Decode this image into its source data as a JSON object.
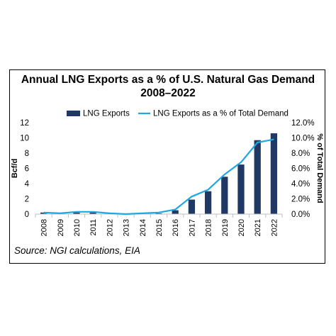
{
  "chart_data": {
    "type": "bar",
    "title_lines": [
      "Annual LNG Exports as a % of U.S. Natural Gas Demand",
      "2008–2022"
    ],
    "categories": [
      "2008",
      "2009",
      "2010",
      "2011",
      "2012",
      "2013",
      "2014",
      "2015",
      "2016",
      "2017",
      "2018",
      "2019",
      "2020",
      "2021",
      "2022"
    ],
    "series": [
      {
        "name": "LNG Exports",
        "kind": "bar",
        "axis": "left",
        "color": "#1f3864",
        "values": [
          0.2,
          0.1,
          0.2,
          0.2,
          0.1,
          0.0,
          0.0,
          0.1,
          0.5,
          1.9,
          3.0,
          4.9,
          6.5,
          9.7,
          10.6
        ]
      },
      {
        "name": "LNG Exports as a % of Total Demand",
        "kind": "line",
        "axis": "right",
        "color": "#1ea7e1",
        "values": [
          0.2,
          0.1,
          0.3,
          0.3,
          0.1,
          0.0,
          0.1,
          0.2,
          0.6,
          2.3,
          3.2,
          5.2,
          6.8,
          9.4,
          9.8
        ]
      }
    ],
    "ylabel": "Bcf/d",
    "ylabel_right": "% of Total Demand",
    "ylim": [
      0,
      12
    ],
    "ylim_right": [
      0,
      12
    ],
    "yticks": [
      "0",
      "2",
      "4",
      "6",
      "8",
      "10",
      "12"
    ],
    "yticks_right": [
      "0.0%",
      "2.0%",
      "4.0%",
      "6.0%",
      "8.0%",
      "10.0%",
      "12.0%"
    ],
    "legend": "top",
    "grid": false
  },
  "source": "Source: NGI calculations, EIA"
}
